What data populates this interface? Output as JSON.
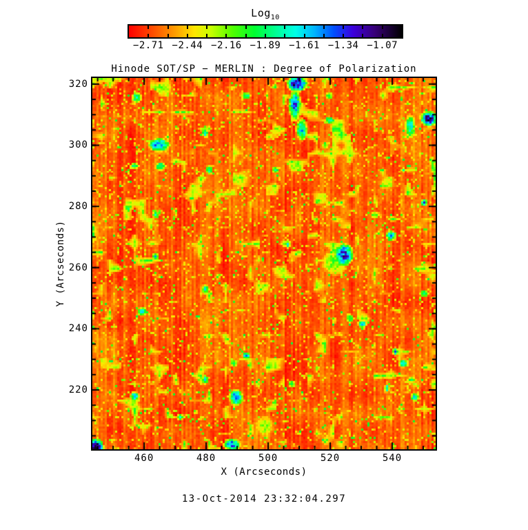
{
  "chart_data": {
    "type": "heatmap",
    "title": "Hinode SOT/SP − MERLIN : Degree of Polarization",
    "xlabel": "X (Arcseconds)",
    "ylabel": "Y (Arcseconds)",
    "timestamp": "13-Oct-2014 23:32:04.297",
    "xlim": [
      443.3,
      554.0
    ],
    "ylim": [
      200.6,
      322.0
    ],
    "x_ticks": [
      460,
      480,
      500,
      520,
      540
    ],
    "y_ticks": [
      220,
      240,
      260,
      280,
      300,
      320
    ],
    "minor_tick_step": 5,
    "colorbar": {
      "title": "Log",
      "title_sub": "10",
      "tick_labels": [
        "−2.71",
        "−2.44",
        "−2.16",
        "−1.89",
        "−1.61",
        "−1.34",
        "−1.07"
      ],
      "tick_values": [
        -2.71,
        -2.44,
        -2.16,
        -1.89,
        -1.61,
        -1.34,
        -1.07
      ],
      "segments": 14,
      "colormap_stops": [
        [
          0.0,
          "#ff0000"
        ],
        [
          0.09,
          "#ff5000"
        ],
        [
          0.17,
          "#ff9e00"
        ],
        [
          0.24,
          "#ffe600"
        ],
        [
          0.3,
          "#c8ff00"
        ],
        [
          0.38,
          "#50ff00"
        ],
        [
          0.46,
          "#00ff30"
        ],
        [
          0.54,
          "#00ff96"
        ],
        [
          0.61,
          "#00ffe6"
        ],
        [
          0.68,
          "#00b4ff"
        ],
        [
          0.75,
          "#0050ff"
        ],
        [
          0.82,
          "#3c00dc"
        ],
        [
          0.9,
          "#380078"
        ],
        [
          1.0,
          "#000000"
        ]
      ]
    },
    "heatmap": {
      "description": "Quiet-sun degree-of-polarization map: dominant log10 values −2.7…−2.3 (red/orange granular mottle), a speckled network of −2.2…−1.9 (yellow/green) patches, and sparse −1.6…−1.1 (cyan/blue/dark-violet) magnetic elements.",
      "seed": 1234567,
      "cells_x": 166,
      "cells_y": 180,
      "base_level": 0.02,
      "base_amplitude": 0.11,
      "column_stripe_amplitude": 0.045,
      "speckle_yellow_prob": 0.1,
      "speckle_green_prob": 0.025,
      "spot_prob": 0.0037,
      "clump_threshold": 0.74,
      "features": [
        {
          "x": 509.0,
          "y": 320.5,
          "rx": 2.6,
          "ry": 2.2,
          "v": 0.88
        },
        {
          "x": 508.3,
          "y": 313.5,
          "rx": 1.6,
          "ry": 4.0,
          "v": 0.72
        },
        {
          "x": 510.5,
          "y": 305.5,
          "rx": 1.5,
          "ry": 3.0,
          "v": 0.62
        },
        {
          "x": 551.5,
          "y": 309.0,
          "rx": 2.2,
          "ry": 2.0,
          "v": 0.88
        },
        {
          "x": 545.5,
          "y": 306.5,
          "rx": 1.4,
          "ry": 3.2,
          "v": 0.58
        },
        {
          "x": 464.5,
          "y": 300.5,
          "rx": 2.8,
          "ry": 1.8,
          "v": 0.74
        },
        {
          "x": 465.0,
          "y": 293.5,
          "rx": 1.4,
          "ry": 1.2,
          "v": 0.6
        },
        {
          "x": 524.0,
          "y": 264.5,
          "rx": 2.6,
          "ry": 3.0,
          "v": 0.8
        },
        {
          "x": 521.0,
          "y": 262.0,
          "rx": 3.5,
          "ry": 3.5,
          "v": 0.38
        },
        {
          "x": 489.3,
          "y": 217.8,
          "rx": 1.8,
          "ry": 2.2,
          "v": 0.7
        },
        {
          "x": 488.0,
          "y": 202.5,
          "rx": 2.2,
          "ry": 1.6,
          "v": 0.72
        },
        {
          "x": 444.2,
          "y": 201.5,
          "rx": 2.0,
          "ry": 2.4,
          "v": 0.9
        },
        {
          "x": 459.0,
          "y": 246.0,
          "rx": 1.3,
          "ry": 1.3,
          "v": 0.55
        },
        {
          "x": 547.0,
          "y": 218.0,
          "rx": 1.2,
          "ry": 1.2,
          "v": 0.6
        },
        {
          "x": 553.8,
          "y": 290.0,
          "rx": 0.9,
          "ry": 5.5,
          "v": 0.42
        },
        {
          "x": 457.3,
          "y": 316.0,
          "rx": 1.4,
          "ry": 1.4,
          "v": 0.55
        },
        {
          "x": 498.5,
          "y": 208.5,
          "rx": 2.6,
          "ry": 3.0,
          "v": 0.34
        },
        {
          "x": 530.0,
          "y": 242.0,
          "rx": 1.2,
          "ry": 1.2,
          "v": 0.58
        },
        {
          "x": 454.4,
          "y": 279.8,
          "rx": 1.1,
          "ry": 1.1,
          "v": 0.55
        },
        {
          "x": 463.5,
          "y": 277.5,
          "rx": 1.0,
          "ry": 1.0,
          "v": 0.5
        }
      ]
    }
  }
}
